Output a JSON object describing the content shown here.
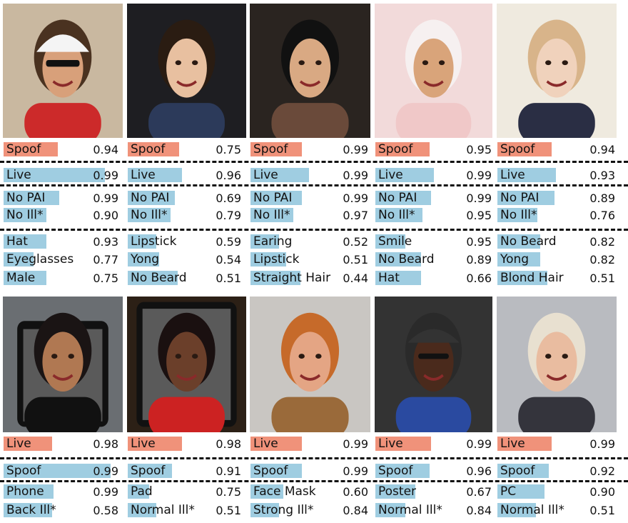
{
  "colors": {
    "spoof_bar": "#f0927a",
    "live_bar": "#9fcde1",
    "text": "#111111"
  },
  "rows": [
    {
      "cells": [
        {
          "subject": "man-with-cap-and-sunglasses",
          "top": "Spoof",
          "top_score": "0.94",
          "second": "Live",
          "second_score": "0.99",
          "attack": [
            {
              "label": "No PAI",
              "score": "0.99"
            },
            {
              "label": "No Ill*",
              "score": "0.90"
            }
          ],
          "attrs": [
            {
              "label": "Hat",
              "score": "0.93"
            },
            {
              "label": "Eyeglasses",
              "score": "0.77"
            },
            {
              "label": "Male",
              "score": "0.75"
            }
          ]
        },
        {
          "subject": "woman-dark-hair",
          "top": "Spoof",
          "top_score": "0.75",
          "second": "Live",
          "second_score": "0.96",
          "attack": [
            {
              "label": "No PAI",
              "score": "0.69"
            },
            {
              "label": "No Ill*",
              "score": "0.79"
            }
          ],
          "attrs": [
            {
              "label": "Lipstick",
              "score": "0.59"
            },
            {
              "label": "Yong",
              "score": "0.54"
            },
            {
              "label": "No Beard",
              "score": "0.51"
            }
          ]
        },
        {
          "subject": "woman-earrings",
          "top": "Spoof",
          "top_score": "0.99",
          "second": "Live",
          "second_score": "0.99",
          "attack": [
            {
              "label": "No PAI",
              "score": "0.99"
            },
            {
              "label": "No Ill*",
              "score": "0.97"
            }
          ],
          "attrs": [
            {
              "label": "Earing",
              "score": "0.52"
            },
            {
              "label": "Lipstick",
              "score": "0.51"
            },
            {
              "label": "Straight Hair",
              "score": "0.44"
            }
          ]
        },
        {
          "subject": "woman-bridal-veil",
          "top": "Spoof",
          "top_score": "0.95",
          "second": "Live",
          "second_score": "0.99",
          "attack": [
            {
              "label": "No PAI",
              "score": "0.99"
            },
            {
              "label": "No Ill*",
              "score": "0.95"
            }
          ],
          "attrs": [
            {
              "label": "Smile",
              "score": "0.95"
            },
            {
              "label": "No Beard",
              "score": "0.89"
            },
            {
              "label": "Hat",
              "score": "0.66"
            }
          ]
        },
        {
          "subject": "blond-child",
          "top": "Spoof",
          "top_score": "0.94",
          "second": "Live",
          "second_score": "0.93",
          "attack": [
            {
              "label": "No PAI",
              "score": "0.89"
            },
            {
              "label": "No Ill*",
              "score": "0.76"
            }
          ],
          "attrs": [
            {
              "label": "No Beard",
              "score": "0.82"
            },
            {
              "label": "Yong",
              "score": "0.82"
            },
            {
              "label": "Blond Hair",
              "score": "0.51"
            }
          ]
        }
      ]
    },
    {
      "cells": [
        {
          "subject": "face-on-phone-screen",
          "top": "Live",
          "top_score": "0.98",
          "second": "Spoof",
          "second_score": "0.99",
          "attack": [
            {
              "label": "Phone",
              "score": "0.99"
            },
            {
              "label": "Back Ill*",
              "score": "0.58"
            }
          ]
        },
        {
          "subject": "woman-on-tablet",
          "top": "Live",
          "top_score": "0.98",
          "second": "Spoof",
          "second_score": "0.91",
          "attack": [
            {
              "label": "Pad",
              "score": "0.75"
            },
            {
              "label": "Normal Ill*",
              "score": "0.51"
            }
          ]
        },
        {
          "subject": "man-face-mask",
          "top": "Live",
          "top_score": "0.99",
          "second": "Spoof",
          "second_score": "0.99",
          "attack": [
            {
              "label": "Face Mask",
              "score": "0.60"
            },
            {
              "label": "Strong Ill*",
              "score": "0.84"
            }
          ]
        },
        {
          "subject": "man-poster-cap",
          "top": "Live",
          "top_score": "0.99",
          "second": "Spoof",
          "second_score": "0.96",
          "attack": [
            {
              "label": "Poster",
              "score": "0.67"
            },
            {
              "label": "Normal Ill*",
              "score": "0.84"
            }
          ]
        },
        {
          "subject": "grey-haired-man",
          "top": "Live",
          "top_score": "0.99",
          "second": "Spoof",
          "second_score": "0.92",
          "attack": [
            {
              "label": "PC",
              "score": "0.90"
            },
            {
              "label": "Normal Ill*",
              "score": "0.51"
            }
          ]
        }
      ]
    }
  ]
}
